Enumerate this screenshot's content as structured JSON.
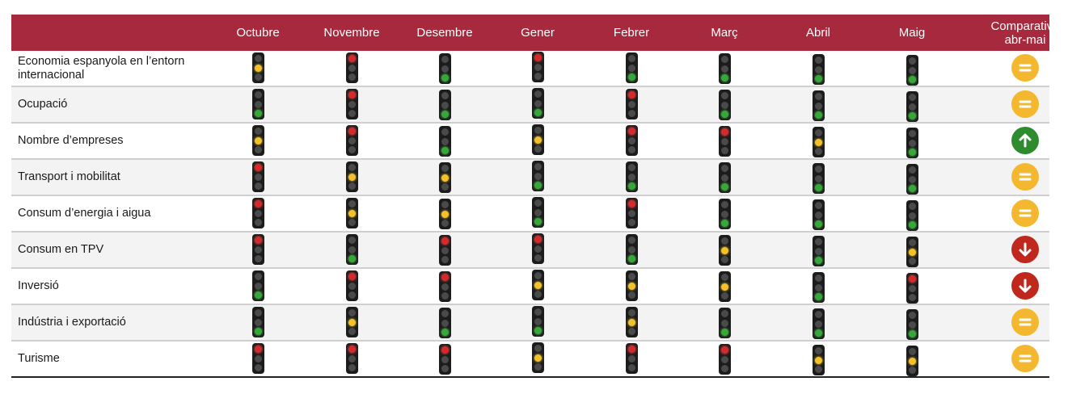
{
  "chart_data": {
    "type": "table",
    "columns": [
      "Octubre",
      "Novembre",
      "Desembre",
      "Gener",
      "Febrer",
      "Març",
      "Abril",
      "Maig"
    ],
    "comparison_label": "Comparativa abr-mai",
    "comparison_label_lines": [
      "Comparativa",
      "abr-mai"
    ],
    "legend": {
      "red": "#d62a2a",
      "yellow": "#f4c12a",
      "green": "#35a838",
      "equal": "#f4b830",
      "up": "#2e8b2e",
      "down": "#c0281e"
    },
    "rows": [
      {
        "label": "Economia espanyola en l’entorn internacional",
        "label_lines": [
          "Economia espanyola en l’entorn",
          "internacional"
        ],
        "lights": [
          "yellow",
          "red",
          "green",
          "red",
          "green",
          "green",
          "green",
          "green"
        ],
        "trend": "equal"
      },
      {
        "label": "Ocupació",
        "label_lines": [
          "Ocupació"
        ],
        "lights": [
          "green",
          "red",
          "green",
          "green",
          "red",
          "green",
          "green",
          "green"
        ],
        "trend": "equal"
      },
      {
        "label": "Nombre d’empreses",
        "label_lines": [
          "Nombre d’empreses"
        ],
        "lights": [
          "yellow",
          "red",
          "green",
          "yellow",
          "red",
          "red",
          "yellow",
          "green"
        ],
        "trend": "up"
      },
      {
        "label": "Transport i mobilitat",
        "label_lines": [
          "Transport i mobilitat"
        ],
        "lights": [
          "red",
          "yellow",
          "yellow",
          "green",
          "green",
          "green",
          "green",
          "green"
        ],
        "trend": "equal"
      },
      {
        "label": "Consum d’energia i aigua",
        "label_lines": [
          "Consum d’energia i aigua"
        ],
        "lights": [
          "red",
          "yellow",
          "yellow",
          "green",
          "red",
          "green",
          "green",
          "green"
        ],
        "trend": "equal"
      },
      {
        "label": "Consum en TPV",
        "label_lines": [
          "Consum en TPV"
        ],
        "lights": [
          "red",
          "green",
          "red",
          "red",
          "green",
          "yellow",
          "green",
          "yellow"
        ],
        "trend": "down"
      },
      {
        "label": "Inversió",
        "label_lines": [
          "Inversió"
        ],
        "lights": [
          "green",
          "red",
          "red",
          "yellow",
          "yellow",
          "yellow",
          "green",
          "red"
        ],
        "trend": "down"
      },
      {
        "label": "Indústria i exportació",
        "label_lines": [
          "Indústria i exportació"
        ],
        "lights": [
          "green",
          "yellow",
          "green",
          "green",
          "yellow",
          "green",
          "green",
          "green"
        ],
        "trend": "equal"
      },
      {
        "label": "Turisme",
        "label_lines": [
          "Turisme"
        ],
        "lights": [
          "red",
          "red",
          "red",
          "yellow",
          "red",
          "red",
          "yellow",
          "yellow"
        ],
        "trend": "equal"
      }
    ]
  }
}
